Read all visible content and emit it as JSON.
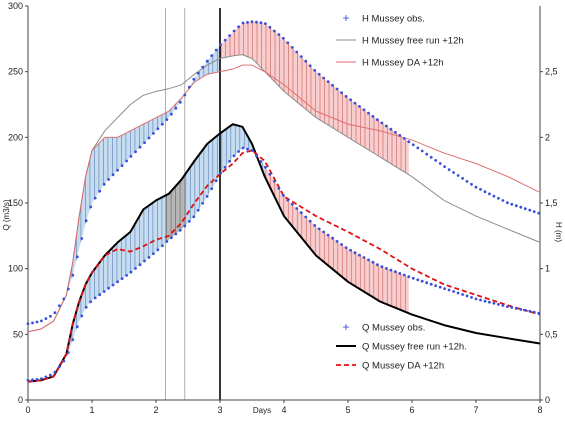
{
  "chart_data": {
    "type": "line",
    "xlabel": "Days",
    "ylabel_left": "Q (m3/s)",
    "ylabel_right": "H (m)",
    "xlim": [
      0,
      8
    ],
    "ylim_left": [
      0,
      300
    ],
    "ylim_right": [
      0,
      3
    ],
    "x_ticks": [
      "0",
      "1",
      "2",
      "3",
      "4",
      "5",
      "6",
      "7",
      "8"
    ],
    "y_left_ticks": [
      "0",
      "50",
      "100",
      "150",
      "200",
      "250",
      "300"
    ],
    "y_right_ticks": [
      "0",
      "0,5",
      "1",
      "1,5",
      "2",
      "2,5"
    ],
    "y_right_values": [
      0,
      0.5,
      1,
      1.5,
      2,
      2.5
    ],
    "vertical_lines": [
      {
        "x": 2.15,
        "color": "#9a9a9a",
        "style": "solid-thin"
      },
      {
        "x": 2.45,
        "color": "#9a9a9a",
        "style": "solid-thin"
      },
      {
        "x": 3.0,
        "color": "#000000",
        "style": "solid"
      }
    ],
    "legend": [
      {
        "label": "H Mussey obs.",
        "color": "#3a4fd9",
        "style": "dots"
      },
      {
        "label": "H Mussey free run +12h",
        "color": "#8c8c8c",
        "style": "line"
      },
      {
        "label": "H Mussey DA +12h",
        "color": "#e06666",
        "style": "thin-line"
      },
      {
        "label": "Q Mussey obs.",
        "color": "#3a4fd9",
        "style": "dots"
      },
      {
        "label": "Q Mussey free run +12h.",
        "color": "#000000",
        "style": "thick-line"
      },
      {
        "label": "Q Mussey DA +12h",
        "color": "#e01010",
        "style": "dashed"
      }
    ],
    "series": [
      {
        "key": "h_obs",
        "axis": "right",
        "color": "#3a4fd9",
        "x": [
          0,
          0.2,
          0.4,
          0.6,
          0.7,
          0.8,
          0.9,
          1.0,
          1.2,
          1.4,
          1.6,
          1.8,
          2.0,
          2.2,
          2.4,
          2.6,
          2.8,
          3.0,
          3.2,
          3.35,
          3.5,
          3.7,
          4.0,
          4.5,
          5.0,
          5.5,
          6.0,
          6.5,
          7.0,
          7.5,
          8.0
        ],
        "y": [
          0.58,
          0.6,
          0.65,
          0.8,
          0.95,
          1.15,
          1.35,
          1.5,
          1.65,
          1.75,
          1.85,
          1.95,
          2.05,
          2.15,
          2.28,
          2.45,
          2.58,
          2.7,
          2.8,
          2.87,
          2.88,
          2.87,
          2.75,
          2.5,
          2.3,
          2.12,
          1.95,
          1.78,
          1.62,
          1.5,
          1.42
        ]
      },
      {
        "key": "h_free",
        "axis": "right",
        "color": "#8c8c8c",
        "x": [
          0,
          0.2,
          0.4,
          0.6,
          0.7,
          0.8,
          0.9,
          1.0,
          1.2,
          1.4,
          1.6,
          1.8,
          2.0,
          2.2,
          2.4,
          2.6,
          2.8,
          3.0,
          3.2,
          3.35,
          3.5,
          3.7,
          4.0,
          4.5,
          5.0,
          5.5,
          6.0,
          6.5,
          7.0,
          7.5,
          8.0
        ],
        "y": [
          0.52,
          0.54,
          0.6,
          0.8,
          1.05,
          1.4,
          1.7,
          1.9,
          2.05,
          2.15,
          2.25,
          2.32,
          2.35,
          2.37,
          2.4,
          2.48,
          2.55,
          2.6,
          2.62,
          2.63,
          2.6,
          2.5,
          2.35,
          2.15,
          2.0,
          1.85,
          1.7,
          1.52,
          1.4,
          1.3,
          1.2
        ]
      },
      {
        "key": "h_da",
        "axis": "right",
        "color": "#e06666",
        "x": [
          0,
          0.2,
          0.4,
          0.6,
          0.7,
          0.8,
          0.9,
          1.0,
          1.2,
          1.4,
          1.6,
          1.8,
          2.0,
          2.2,
          2.4,
          2.6,
          2.8,
          3.0,
          3.2,
          3.35,
          3.5,
          3.7,
          4.0,
          4.5,
          5.0,
          5.5,
          6.0,
          6.5,
          7.0,
          7.5,
          8.0
        ],
        "y": [
          0.52,
          0.54,
          0.6,
          0.8,
          1.05,
          1.4,
          1.7,
          1.9,
          2.0,
          2.0,
          2.05,
          2.1,
          2.15,
          2.2,
          2.3,
          2.42,
          2.48,
          2.5,
          2.52,
          2.55,
          2.55,
          2.5,
          2.4,
          2.2,
          2.1,
          2.05,
          1.98,
          1.88,
          1.8,
          1.7,
          1.58
        ]
      },
      {
        "key": "q_obs",
        "axis": "left",
        "color": "#3a4fd9",
        "x": [
          0,
          0.2,
          0.4,
          0.6,
          0.7,
          0.8,
          0.9,
          1.0,
          1.2,
          1.4,
          1.6,
          1.8,
          2.0,
          2.2,
          2.4,
          2.6,
          2.8,
          3.0,
          3.2,
          3.35,
          3.5,
          3.7,
          4.0,
          4.5,
          5.0,
          5.5,
          6.0,
          6.5,
          7.0,
          7.5,
          8.0
        ],
        "y": [
          15,
          16,
          20,
          32,
          46,
          60,
          70,
          76,
          83,
          90,
          97,
          105,
          113,
          122,
          130,
          140,
          155,
          172,
          185,
          192,
          190,
          178,
          155,
          132,
          115,
          102,
          93,
          85,
          77,
          71,
          66
        ]
      },
      {
        "key": "q_free",
        "axis": "left",
        "color": "#000000",
        "x": [
          0,
          0.2,
          0.4,
          0.6,
          0.7,
          0.8,
          0.9,
          1.0,
          1.2,
          1.4,
          1.6,
          1.8,
          2.0,
          2.2,
          2.4,
          2.6,
          2.8,
          3.0,
          3.2,
          3.35,
          3.5,
          3.7,
          4.0,
          4.5,
          5.0,
          5.5,
          6.0,
          6.5,
          7.0,
          7.5,
          8.0
        ],
        "y": [
          14,
          15,
          18,
          35,
          58,
          75,
          88,
          97,
          110,
          120,
          128,
          145,
          152,
          157,
          168,
          182,
          195,
          203,
          210,
          208,
          195,
          170,
          140,
          110,
          90,
          75,
          65,
          57,
          51,
          47,
          43
        ]
      },
      {
        "key": "q_da",
        "axis": "left",
        "color": "#e01010",
        "x": [
          0,
          0.2,
          0.4,
          0.6,
          0.7,
          0.8,
          0.9,
          1.0,
          1.2,
          1.4,
          1.6,
          1.8,
          2.0,
          2.2,
          2.4,
          2.6,
          2.8,
          3.0,
          3.2,
          3.35,
          3.5,
          3.7,
          4.0,
          4.5,
          5.0,
          5.5,
          6.0,
          6.5,
          7.0,
          7.5,
          8.0
        ],
        "y": [
          14,
          15,
          18,
          35,
          58,
          75,
          88,
          97,
          110,
          115,
          113,
          117,
          122,
          125,
          135,
          150,
          163,
          172,
          180,
          188,
          190,
          182,
          155,
          140,
          128,
          115,
          100,
          88,
          80,
          72,
          65
        ]
      }
    ],
    "shaded_regions": [
      {
        "between": [
          "h_obs",
          "h_da"
        ],
        "x_range": [
          0.6,
          2.45
        ],
        "color": "#bcd7ee",
        "hatch": "#4a6fa5"
      },
      {
        "between": [
          "h_obs",
          "h_da"
        ],
        "x_range": [
          2.45,
          3.0
        ],
        "color": "#bcd7ee",
        "hatch": "#4a6fa5"
      },
      {
        "between": [
          "h_obs",
          "h_free"
        ],
        "x_range": [
          3.0,
          5.95
        ],
        "color": "#f6c4c4",
        "hatch": "#c0504d"
      },
      {
        "between": [
          "q_obs",
          "q_free"
        ],
        "x_range": [
          0.6,
          2.15
        ],
        "color": "#bcd7ee",
        "hatch": "#4a6fa5"
      },
      {
        "between": [
          "q_obs",
          "q_free"
        ],
        "x_range": [
          2.15,
          2.45
        ],
        "color": "#a9a9a9",
        "hatch": "#555555"
      },
      {
        "between": [
          "q_obs",
          "q_free"
        ],
        "x_range": [
          2.45,
          3.7
        ],
        "color": "#bcd7ee",
        "hatch": "#4a6fa5"
      },
      {
        "between": [
          "q_obs",
          "q_free"
        ],
        "x_range": [
          3.7,
          5.95
        ],
        "color": "#f6c4c4",
        "hatch": "#c0504d"
      }
    ],
    "grid": false,
    "legend_placement": "top-right and bottom-right"
  }
}
